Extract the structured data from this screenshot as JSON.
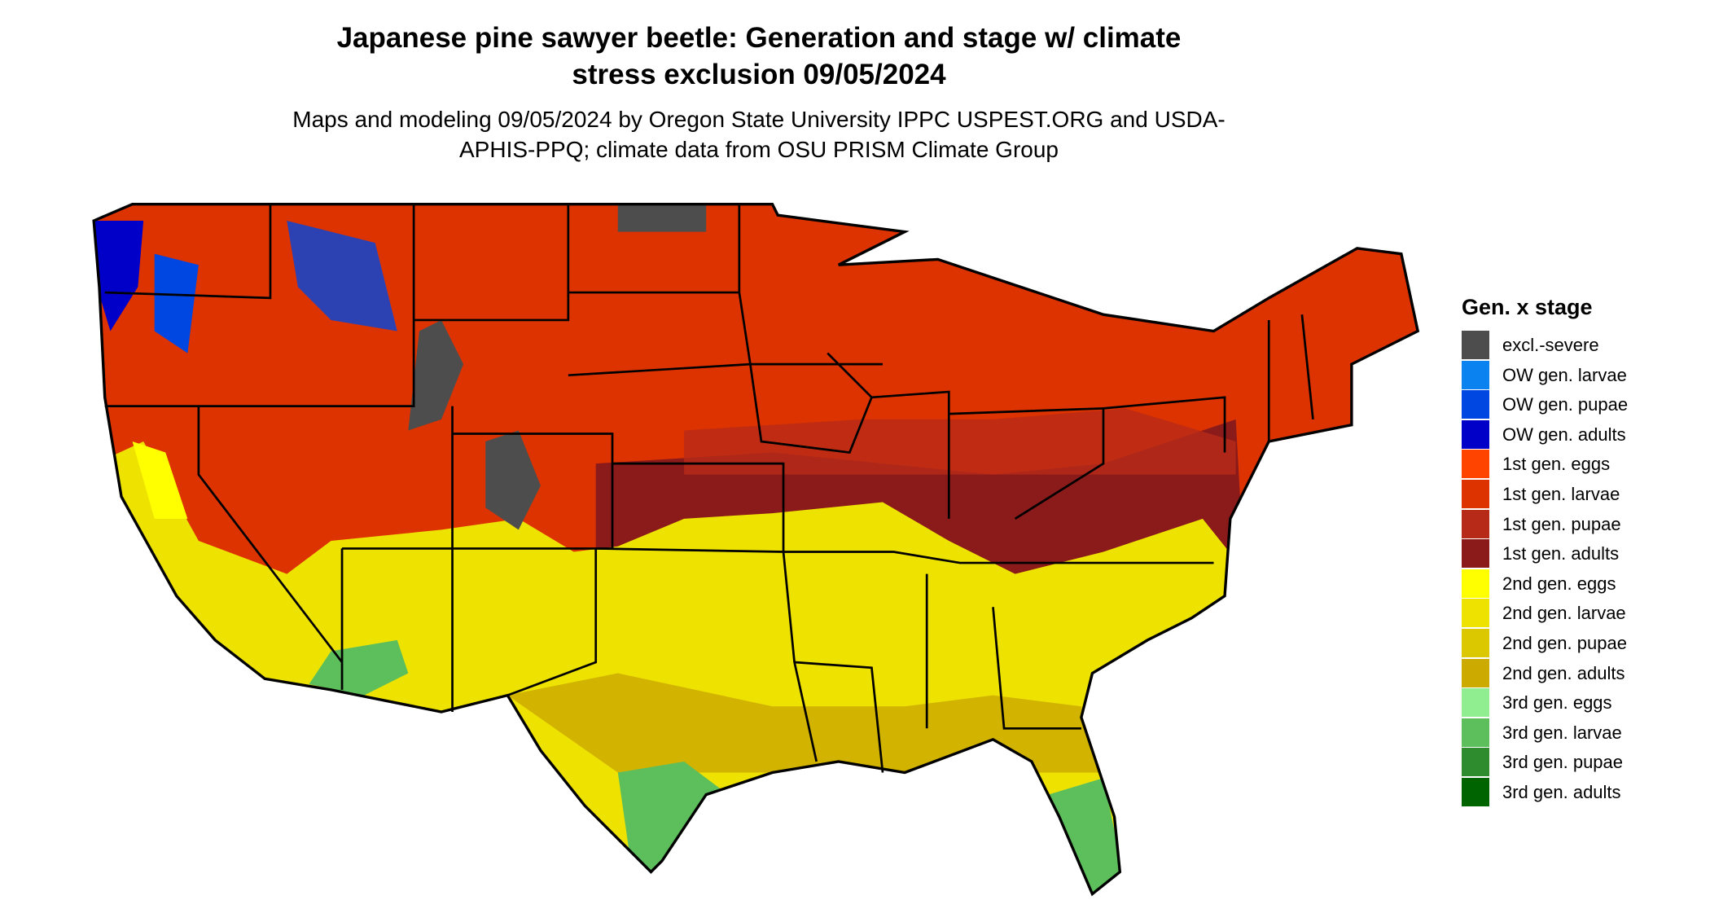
{
  "title": "Japanese pine sawyer beetle: Generation and stage w/ climate stress exclusion 09/05/2024",
  "subtitle": "Maps and modeling 09/05/2024 by Oregon State University IPPC USPEST.ORG and USDA-APHIS-PPQ; climate data from OSU PRISM Climate Group",
  "legend": {
    "title": "Gen. x stage",
    "items": [
      {
        "label": "excl.-severe",
        "color": "#4d4d4d"
      },
      {
        "label": "OW gen. larvae",
        "color": "#0a82f0"
      },
      {
        "label": "OW gen. pupae",
        "color": "#0046e0"
      },
      {
        "label": "OW gen. adults",
        "color": "#0000c8"
      },
      {
        "label": "1st gen. eggs",
        "color": "#ff4400"
      },
      {
        "label": "1st gen. larvae",
        "color": "#dd3300"
      },
      {
        "label": "1st gen. pupae",
        "color": "#b82a18"
      },
      {
        "label": "1st gen. adults",
        "color": "#8b1a1a"
      },
      {
        "label": "2nd gen. eggs",
        "color": "#ffff00"
      },
      {
        "label": "2nd gen. larvae",
        "color": "#eee200"
      },
      {
        "label": "2nd gen. pupae",
        "color": "#dcc800"
      },
      {
        "label": "2nd gen. adults",
        "color": "#ccaa00"
      },
      {
        "label": "3rd gen. eggs",
        "color": "#90ee90"
      },
      {
        "label": "3rd gen. larvae",
        "color": "#5cbf5c"
      },
      {
        "label": "3rd gen. pupae",
        "color": "#2e8b2e"
      },
      {
        "label": "3rd gen. adults",
        "color": "#006400"
      }
    ]
  }
}
